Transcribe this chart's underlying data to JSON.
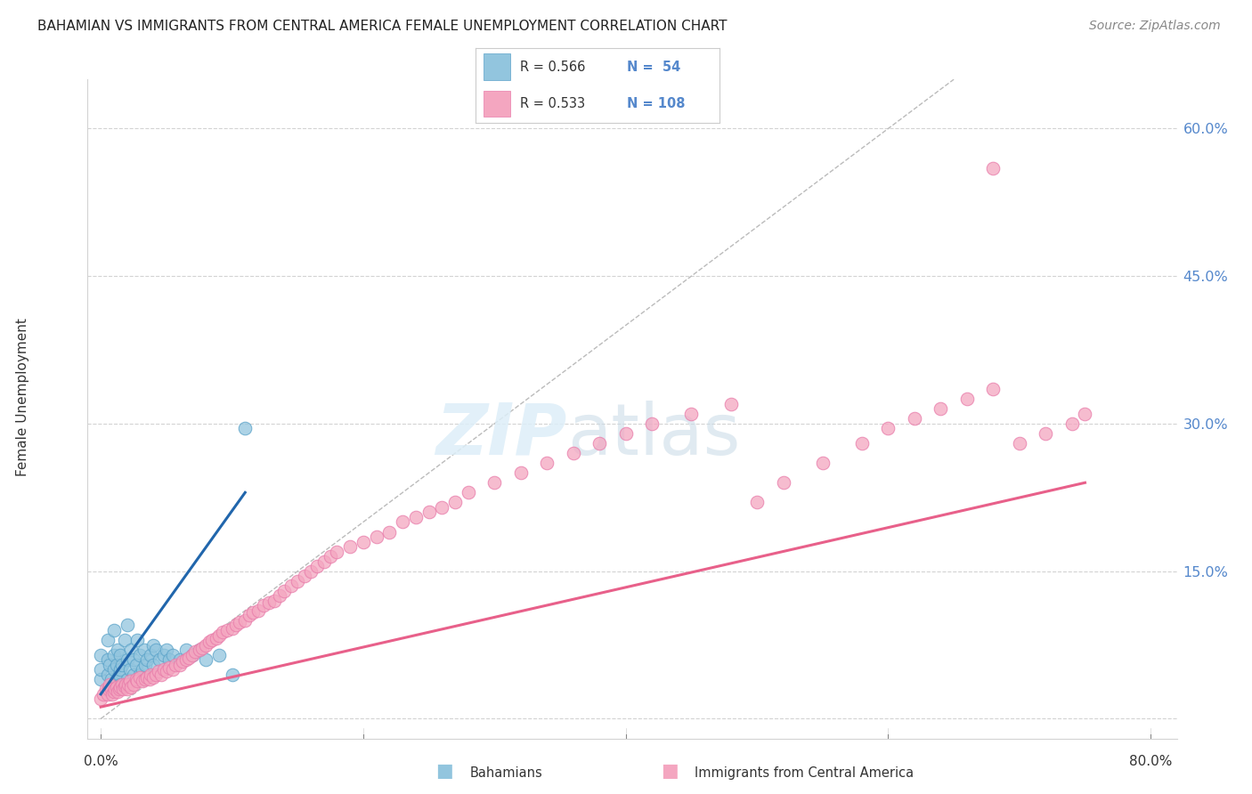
{
  "title": "BAHAMIAN VS IMMIGRANTS FROM CENTRAL AMERICA FEMALE UNEMPLOYMENT CORRELATION CHART",
  "source": "Source: ZipAtlas.com",
  "ylabel": "Female Unemployment",
  "ytick_values": [
    0.0,
    0.15,
    0.3,
    0.45,
    0.6
  ],
  "ytick_labels": [
    "0.0%",
    "15.0%",
    "30.0%",
    "45.0%",
    "60.0%"
  ],
  "xtick_values": [
    0.0,
    0.2,
    0.4,
    0.6,
    0.8
  ],
  "xtick_labels": [
    "0.0%",
    "",
    "",
    "",
    "80.0%"
  ],
  "xlim": [
    -0.01,
    0.82
  ],
  "ylim": [
    -0.02,
    0.65
  ],
  "legend_r1": "R = 0.566",
  "legend_n1": "N =  54",
  "legend_r2": "R = 0.533",
  "legend_n2": "N = 108",
  "bahamian_color": "#92c5de",
  "bahamian_edge": "#5ba3c9",
  "central_america_color": "#f4a6c0",
  "central_america_edge": "#e87caa",
  "trend_bahamian_color": "#2166ac",
  "trend_central_america_color": "#e8608a",
  "diagonal_color": "#bbbbbb",
  "background_color": "#ffffff",
  "grid_color": "#d3d3d3",
  "right_axis_color": "#5588cc",
  "bahamian_x": [
    0.0,
    0.0,
    0.0,
    0.005,
    0.005,
    0.005,
    0.005,
    0.007,
    0.008,
    0.01,
    0.01,
    0.01,
    0.01,
    0.012,
    0.012,
    0.013,
    0.014,
    0.015,
    0.015,
    0.015,
    0.016,
    0.018,
    0.02,
    0.02,
    0.02,
    0.022,
    0.023,
    0.025,
    0.025,
    0.027,
    0.028,
    0.03,
    0.03,
    0.032,
    0.033,
    0.034,
    0.035,
    0.038,
    0.04,
    0.04,
    0.042,
    0.045,
    0.048,
    0.05,
    0.052,
    0.055,
    0.06,
    0.065,
    0.07,
    0.075,
    0.08,
    0.09,
    0.1,
    0.11
  ],
  "bahamian_y": [
    0.04,
    0.05,
    0.065,
    0.03,
    0.045,
    0.06,
    0.08,
    0.055,
    0.04,
    0.035,
    0.05,
    0.065,
    0.09,
    0.04,
    0.055,
    0.07,
    0.045,
    0.035,
    0.05,
    0.065,
    0.055,
    0.08,
    0.04,
    0.06,
    0.095,
    0.05,
    0.07,
    0.045,
    0.06,
    0.055,
    0.08,
    0.045,
    0.065,
    0.05,
    0.07,
    0.055,
    0.06,
    0.065,
    0.055,
    0.075,
    0.07,
    0.06,
    0.065,
    0.07,
    0.06,
    0.065,
    0.06,
    0.07,
    0.065,
    0.07,
    0.06,
    0.065,
    0.045,
    0.295
  ],
  "central_x": [
    0.0,
    0.002,
    0.004,
    0.005,
    0.006,
    0.007,
    0.008,
    0.009,
    0.01,
    0.011,
    0.012,
    0.013,
    0.014,
    0.015,
    0.016,
    0.017,
    0.018,
    0.019,
    0.02,
    0.021,
    0.022,
    0.023,
    0.025,
    0.027,
    0.028,
    0.03,
    0.032,
    0.034,
    0.035,
    0.037,
    0.038,
    0.04,
    0.042,
    0.044,
    0.046,
    0.048,
    0.05,
    0.052,
    0.055,
    0.057,
    0.06,
    0.062,
    0.065,
    0.067,
    0.07,
    0.072,
    0.075,
    0.077,
    0.08,
    0.083,
    0.085,
    0.088,
    0.09,
    0.093,
    0.096,
    0.1,
    0.103,
    0.106,
    0.11,
    0.113,
    0.116,
    0.12,
    0.124,
    0.128,
    0.132,
    0.136,
    0.14,
    0.145,
    0.15,
    0.155,
    0.16,
    0.165,
    0.17,
    0.175,
    0.18,
    0.19,
    0.2,
    0.21,
    0.22,
    0.23,
    0.24,
    0.25,
    0.26,
    0.27,
    0.28,
    0.3,
    0.32,
    0.34,
    0.36,
    0.38,
    0.4,
    0.42,
    0.45,
    0.48,
    0.5,
    0.52,
    0.55,
    0.58,
    0.6,
    0.62,
    0.64,
    0.66,
    0.68,
    0.7,
    0.72,
    0.74,
    0.68,
    0.75
  ],
  "central_y": [
    0.02,
    0.025,
    0.03,
    0.025,
    0.03,
    0.035,
    0.03,
    0.025,
    0.028,
    0.03,
    0.032,
    0.028,
    0.03,
    0.032,
    0.035,
    0.03,
    0.033,
    0.035,
    0.03,
    0.035,
    0.038,
    0.032,
    0.035,
    0.04,
    0.038,
    0.042,
    0.038,
    0.04,
    0.042,
    0.04,
    0.045,
    0.042,
    0.045,
    0.048,
    0.045,
    0.05,
    0.048,
    0.052,
    0.05,
    0.055,
    0.055,
    0.058,
    0.06,
    0.062,
    0.065,
    0.068,
    0.07,
    0.072,
    0.075,
    0.078,
    0.08,
    0.082,
    0.085,
    0.088,
    0.09,
    0.092,
    0.095,
    0.098,
    0.1,
    0.105,
    0.108,
    0.11,
    0.115,
    0.118,
    0.12,
    0.125,
    0.13,
    0.135,
    0.14,
    0.145,
    0.15,
    0.155,
    0.16,
    0.165,
    0.17,
    0.175,
    0.18,
    0.185,
    0.19,
    0.2,
    0.205,
    0.21,
    0.215,
    0.22,
    0.23,
    0.24,
    0.25,
    0.26,
    0.27,
    0.28,
    0.29,
    0.3,
    0.31,
    0.32,
    0.22,
    0.24,
    0.26,
    0.28,
    0.295,
    0.305,
    0.315,
    0.325,
    0.335,
    0.28,
    0.29,
    0.3,
    0.56,
    0.31
  ],
  "trend_b_x0": 0.0,
  "trend_b_x1": 0.11,
  "trend_b_y0": 0.025,
  "trend_b_y1": 0.23,
  "trend_c_x0": 0.0,
  "trend_c_x1": 0.75,
  "trend_c_y0": 0.012,
  "trend_c_y1": 0.24
}
